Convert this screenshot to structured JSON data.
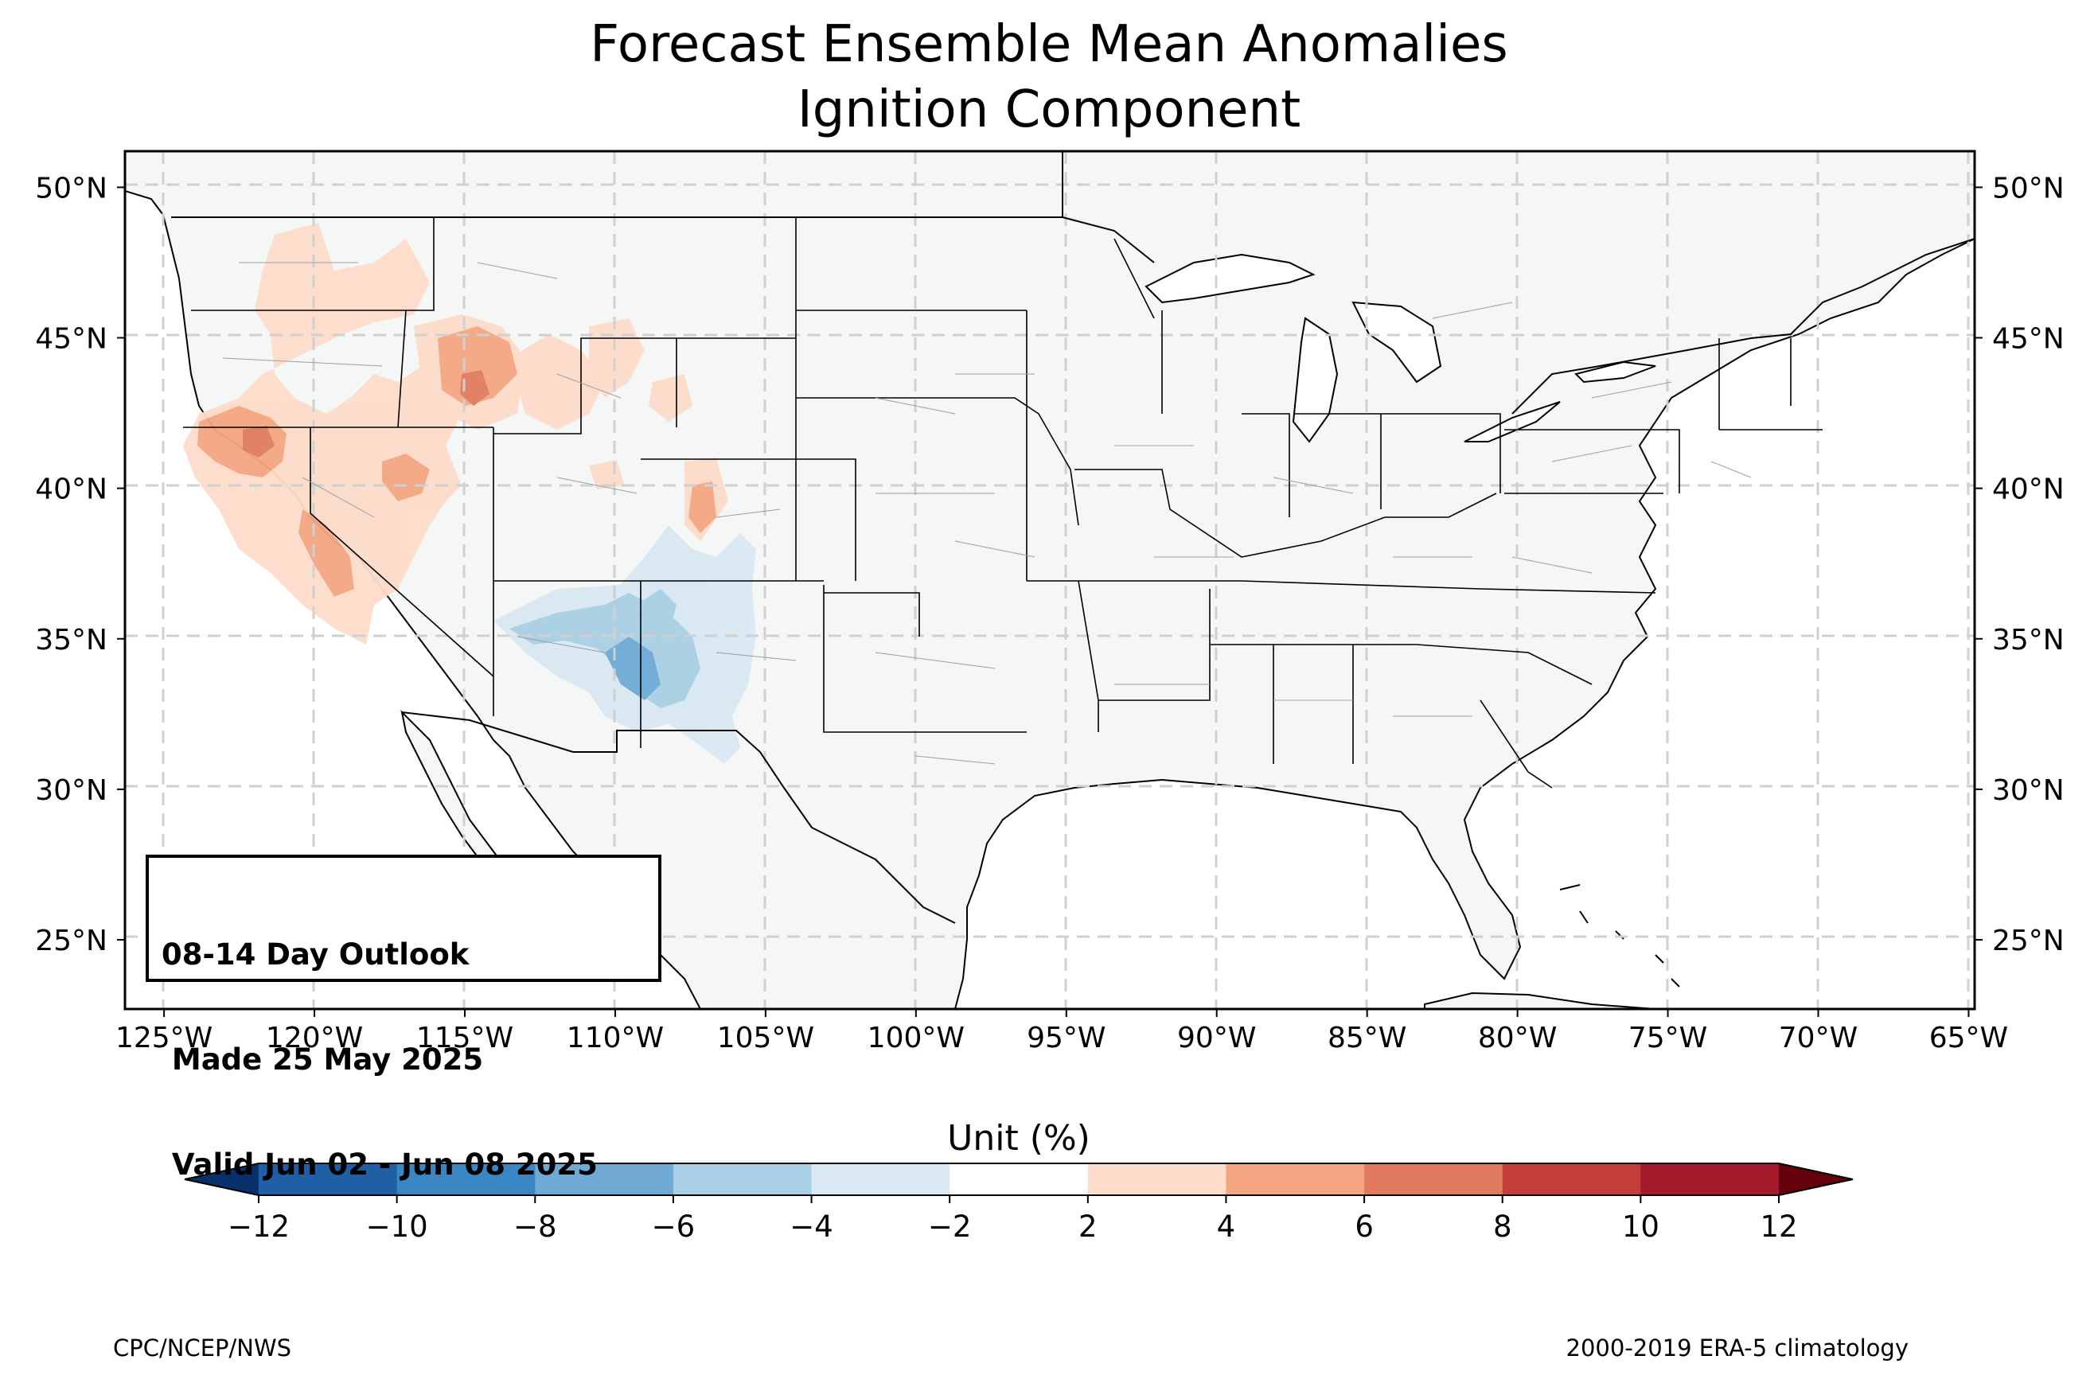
{
  "title_line1": "Forecast Ensemble Mean Anomalies",
  "title_line2": "Ignition Component",
  "outlook_box": {
    "line1": "08-14 Day Outlook",
    "line2": " Made 25 May 2025",
    "line3": " Valid Jun 02 - Jun 08 2025"
  },
  "lon_ticks": [
    "125°W",
    "120°W",
    "115°W",
    "110°W",
    "105°W",
    "100°W",
    "95°W",
    "90°W",
    "85°W",
    "80°W",
    "75°W",
    "70°W",
    "65°W"
  ],
  "lat_ticks": [
    "50°N",
    "45°N",
    "40°N",
    "35°N",
    "30°N",
    "25°N"
  ],
  "map_extent": {
    "lon_min": -126.3,
    "lon_max": -64.8,
    "lat_min": 22.7,
    "lat_max": 51.2
  },
  "colorbar": {
    "title": "Unit (%)",
    "ticks": [
      "−12",
      "−10",
      "−8",
      "−6",
      "−4",
      "−2",
      "2",
      "4",
      "6",
      "8",
      "10",
      "12"
    ],
    "colors": [
      "#08306b",
      "#1f5fa6",
      "#3a86c2",
      "#6eaad4",
      "#a9cfe5",
      "#d9e8f2",
      "#ffffff",
      "#fddcc9",
      "#f4a582",
      "#e07b61",
      "#c53e3a",
      "#a51a2b",
      "#67000d"
    ]
  },
  "footer_left": "CPC/NCEP/NWS",
  "footer_right": "2000-2019 ERA-5 climatology",
  "colors": {
    "land": "#f5f7f7",
    "ocean": "#ffffff",
    "border": "#000000",
    "grid": "#d0d0d0"
  }
}
